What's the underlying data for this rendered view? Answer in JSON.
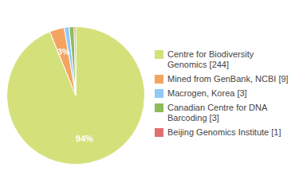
{
  "chart_data": {
    "type": "pie",
    "categories": [
      "Centre for Biodiversity\nGenomics [244]",
      "Mined from GenBank, NCBI [9]",
      "Macrogen, Korea [3]",
      "Canadian Centre for DNA\nBarcoding [3]",
      "Beijing Genomics Institute [1]"
    ],
    "values": [
      93.85,
      3.46,
      1.15,
      1.15,
      0.38
    ],
    "value_labels": [
      "94%",
      "3%",
      null,
      null,
      null
    ],
    "data_labels": true,
    "colors": [
      "#d4e17a",
      "#f4a460",
      "#90caf9",
      "#8fbc5a",
      "#e07070"
    ],
    "legend": "right"
  }
}
